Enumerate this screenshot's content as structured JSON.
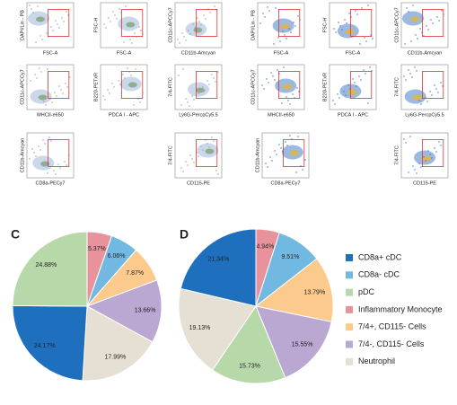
{
  "flow_panels": [
    {
      "x_label": "FSC-A",
      "y_label": "DAPI/Lin - PB"
    },
    {
      "x_label": "FSC-A",
      "y_label": "FSC-H"
    },
    {
      "x_label": "CD11b-Amcyan",
      "y_label": "CD11c-APCCy7"
    },
    {
      "x_label": "MHCII-e650",
      "y_label": "CD11c-APCCy7"
    },
    {
      "x_label": "PDCA I - APC",
      "y_label": "B220-PETxR"
    },
    {
      "x_label": "Ly6G-PercpCy5.5",
      "y_label": "7/4-FITC"
    },
    {
      "x_label": "CD8a-PECy7",
      "y_label": "CD11b-Amcyan"
    },
    {
      "x_label": "CD115-PE",
      "y_label": "7/4-FITC"
    },
    {
      "x_label": "FSC-A",
      "y_label": "DAPI/Lin - PB"
    },
    {
      "x_label": "FSC-A",
      "y_label": "FSC-H"
    },
    {
      "x_label": "CD11b-Amcyan",
      "y_label": "CD11c-APCCy7"
    },
    {
      "x_label": "MHCII-e650",
      "y_label": "CD11c-APCCy7"
    },
    {
      "x_label": "PDCA I - APC",
      "y_label": "B220-PETxR"
    },
    {
      "x_label": "Ly6G-PercpCy5.5",
      "y_label": "7/4-FITC"
    },
    {
      "x_label": "CD8a-PECy7",
      "y_label": "CD11b-Amcyan"
    },
    {
      "x_label": "CD115-PE",
      "y_label": "7/4-FITC"
    }
  ],
  "legend": [
    {
      "name": "CD8a+ cDC",
      "color": "#1f6fbf"
    },
    {
      "name": "CD8a- cDC",
      "color": "#72b9e2"
    },
    {
      "name": "pDC",
      "color": "#b7d8a9"
    },
    {
      "name": "Inflammatory Monocyte",
      "color": "#e8939c"
    },
    {
      "name": "7/4+, CD115- Cells",
      "color": "#fcca8c"
    },
    {
      "name": "7/4-, CD115- Cells",
      "color": "#baa7d2"
    },
    {
      "name": "Neutrophil",
      "color": "#e6e0d4"
    }
  ],
  "chart_data": [
    {
      "type": "pie",
      "label": "C",
      "categories": [
        "Inflammatory Monocyte",
        "CD8a- cDC",
        "7/4+, CD115- Cells",
        "7/4-, CD115- Cells",
        "Neutrophil",
        "CD8a+ cDC",
        "pDC"
      ],
      "values": [
        5.37,
        6.06,
        7.87,
        13.66,
        17.99,
        24.17,
        24.88
      ],
      "value_labels": [
        "5.37%",
        "6.06%",
        "7.87%",
        "13.66%",
        "17.99%",
        "24.17%",
        "24.88%"
      ]
    },
    {
      "type": "pie",
      "label": "D",
      "categories": [
        "Inflammatory Monocyte",
        "CD8a- cDC",
        "7/4+, CD115- Cells",
        "7/4-, CD115- Cells",
        "pDC",
        "Neutrophil",
        "CD8a+ cDC"
      ],
      "values": [
        4.94,
        9.51,
        13.79,
        15.55,
        15.73,
        19.13,
        21.34
      ],
      "value_labels": [
        "4.94%",
        "9.51%",
        "13.79%",
        "15.55%",
        "15.73%",
        "19.13%",
        "21.34%"
      ]
    }
  ]
}
